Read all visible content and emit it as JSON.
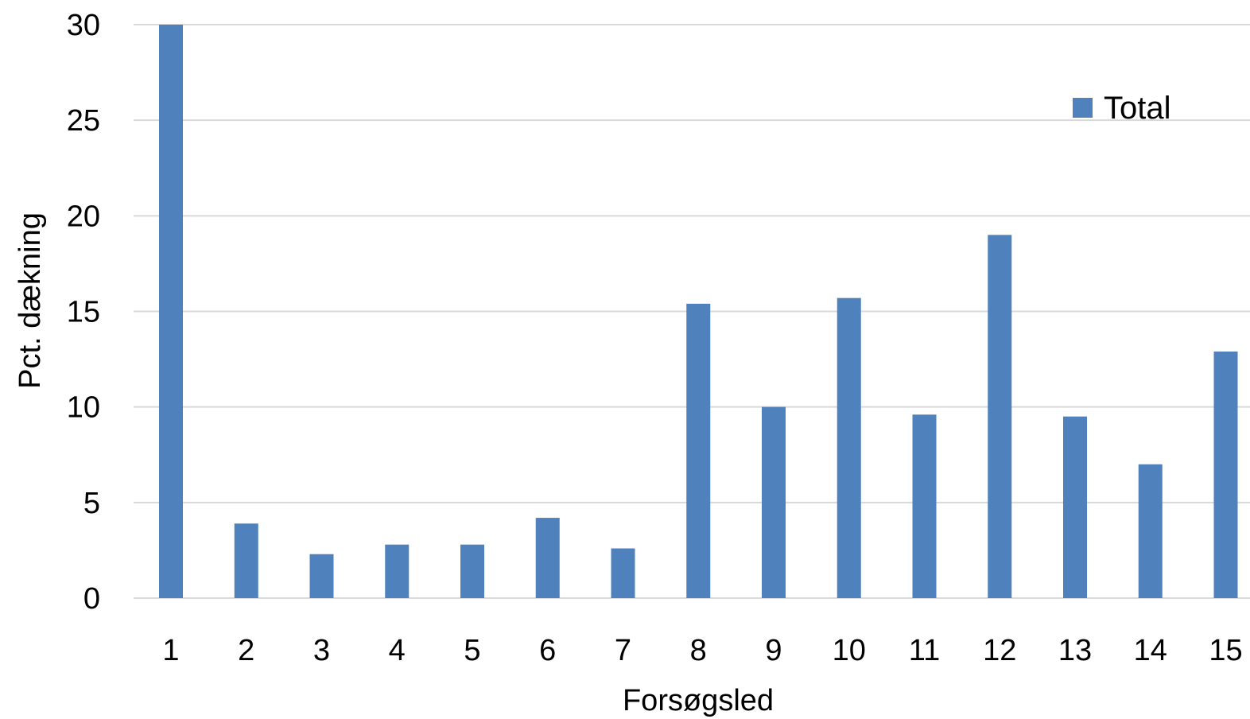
{
  "chart_data": {
    "type": "bar",
    "categories": [
      "1",
      "2",
      "3",
      "4",
      "5",
      "6",
      "7",
      "8",
      "9",
      "10",
      "11",
      "12",
      "13",
      "14",
      "15"
    ],
    "series": [
      {
        "name": "Total",
        "color": "#4f81bd",
        "values": [
          30,
          3.9,
          2.3,
          2.8,
          2.8,
          4.2,
          2.6,
          15.4,
          10,
          15.7,
          9.6,
          19,
          9.5,
          7,
          12.9
        ]
      }
    ],
    "xlabel": "Forsøgsled",
    "ylabel": "Pct. dækning",
    "ylim": [
      0,
      30
    ],
    "yticks": [
      "0",
      "5",
      "10",
      "15",
      "20",
      "25",
      "30"
    ],
    "grid": true,
    "legend": "top-right"
  }
}
